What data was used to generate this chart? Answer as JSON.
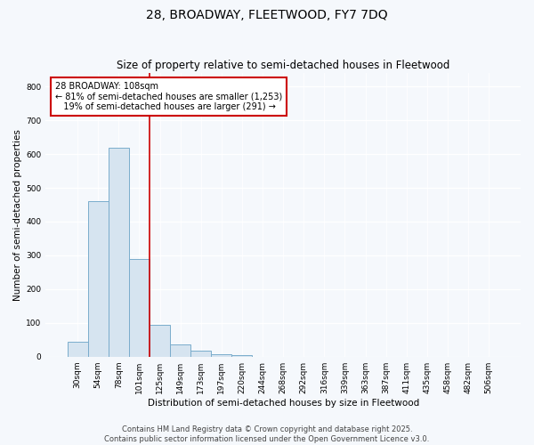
{
  "title1": "28, BROADWAY, FLEETWOOD, FY7 7DQ",
  "title2": "Size of property relative to semi-detached houses in Fleetwood",
  "xlabel": "Distribution of semi-detached houses by size in Fleetwood",
  "ylabel": "Number of semi-detached properties",
  "bar_color": "#d6e4f0",
  "bar_edge_color": "#7aaccc",
  "categories": [
    "30sqm",
    "54sqm",
    "78sqm",
    "101sqm",
    "125sqm",
    "149sqm",
    "173sqm",
    "197sqm",
    "220sqm",
    "244sqm",
    "268sqm",
    "292sqm",
    "316sqm",
    "339sqm",
    "363sqm",
    "387sqm",
    "411sqm",
    "435sqm",
    "458sqm",
    "482sqm",
    "506sqm"
  ],
  "values": [
    43,
    460,
    620,
    290,
    93,
    35,
    17,
    8,
    4,
    0,
    0,
    0,
    0,
    0,
    0,
    0,
    0,
    0,
    0,
    0,
    0
  ],
  "ylim": [
    0,
    840
  ],
  "yticks": [
    0,
    100,
    200,
    300,
    400,
    500,
    600,
    700,
    800
  ],
  "vline_color": "#cc0000",
  "vline_index": 3.5,
  "annotation_line1": "28 BROADWAY: 108sqm",
  "annotation_line2": "← 81% of semi-detached houses are smaller (1,253)",
  "annotation_line3": "19% of semi-detached houses are larger (291) →",
  "annotation_box_color": "#ffffff",
  "annotation_box_edge": "#cc0000",
  "footer1": "Contains HM Land Registry data © Crown copyright and database right 2025.",
  "footer2": "Contains public sector information licensed under the Open Government Licence v3.0.",
  "background_color": "#f5f8fc",
  "grid_color": "#ffffff",
  "title_fontsize": 10,
  "subtitle_fontsize": 8.5,
  "axis_label_fontsize": 7.5,
  "tick_fontsize": 6.5,
  "annotation_fontsize": 7,
  "footer_fontsize": 6
}
